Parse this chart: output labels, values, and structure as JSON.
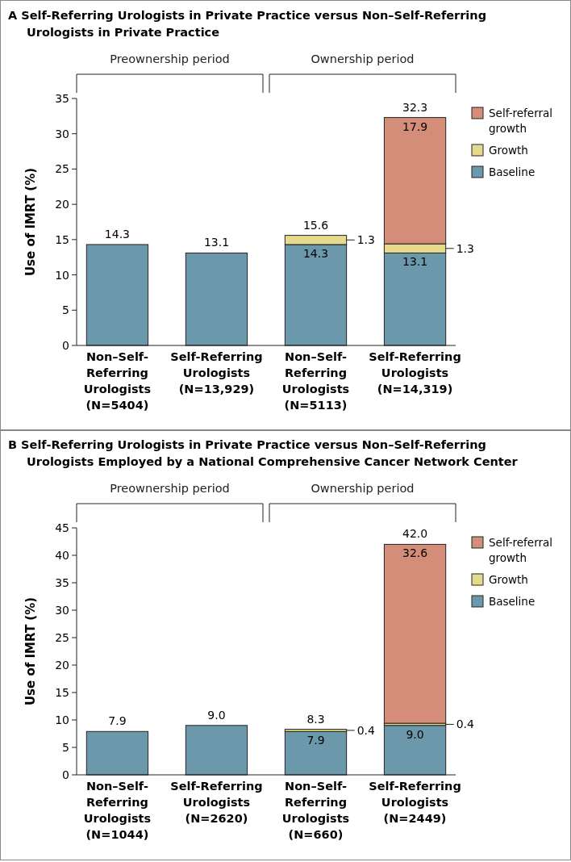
{
  "chart_data": [
    {
      "type": "bar",
      "title": "A  Self-Referring Urologists in Private Practice versus Non–Self-Referring\nUrologists in Private Practice",
      "ylabel": "Use of IMRT (%)",
      "categories": [
        "Non–Self-\nReferring\nUrologists\n(N=5404)",
        "Self-Referring\nUrologists\n(N=13,929)",
        "Non–Self-\nReferring\nUrologists\n(N=5113)",
        "Self-Referring\nUrologists\n(N=14,319)"
      ],
      "stacked": true,
      "annotations": [
        "Preownership period",
        "Ownership period"
      ],
      "series": [
        {
          "name": "Baseline",
          "color": "#6b98ab",
          "values": [
            14.3,
            13.1,
            14.3,
            13.1
          ],
          "value_labels": [
            null,
            null,
            "14.3",
            "13.1"
          ]
        },
        {
          "name": "Growth",
          "color": "#e6da8c",
          "values": [
            null,
            null,
            1.3,
            1.3
          ],
          "value_labels": [
            null,
            null,
            "1.3",
            "1.3"
          ]
        },
        {
          "name": "Self-referral growth",
          "color": "#d38d78",
          "values": [
            null,
            null,
            null,
            17.9
          ],
          "value_labels": [
            null,
            null,
            null,
            "17.9"
          ]
        }
      ],
      "totals": [
        "14.3",
        "13.1",
        "15.6",
        "32.3"
      ],
      "ylim": [
        0,
        35
      ],
      "yticks": [
        0,
        5,
        10,
        15,
        20,
        25,
        30,
        35
      ],
      "legend": "right"
    },
    {
      "type": "bar",
      "title": "B  Self-Referring Urologists in Private Practice versus Non–Self-Referring\nUrologists Employed by a National Comprehensive Cancer Network Center",
      "ylabel": "Use of IMRT (%)",
      "categories": [
        "Non–Self-\nReferring\nUrologists\n(N=1044)",
        "Self-Referring\nUrologists\n(N=2620)",
        "Non–Self-\nReferring\nUrologists\n(N=660)",
        "Self-Referring\nUrologists\n(N=2449)"
      ],
      "stacked": true,
      "annotations": [
        "Preownership period",
        "Ownership period"
      ],
      "series": [
        {
          "name": "Baseline",
          "color": "#6b98ab",
          "values": [
            7.9,
            9.0,
            7.9,
            9.0
          ],
          "value_labels": [
            null,
            null,
            "7.9",
            "9.0"
          ]
        },
        {
          "name": "Growth",
          "color": "#e6da8c",
          "values": [
            null,
            null,
            0.4,
            0.4
          ],
          "value_labels": [
            null,
            null,
            "0.4",
            "0.4"
          ]
        },
        {
          "name": "Self-referral growth",
          "color": "#d38d78",
          "values": [
            null,
            null,
            null,
            32.6
          ],
          "value_labels": [
            null,
            null,
            null,
            "32.6"
          ]
        }
      ],
      "totals": [
        "7.9",
        "9.0",
        "8.3",
        "42.0"
      ],
      "ylim": [
        0,
        45
      ],
      "yticks": [
        0,
        5,
        10,
        15,
        20,
        25,
        30,
        35,
        40,
        45
      ],
      "legend": "right"
    }
  ]
}
